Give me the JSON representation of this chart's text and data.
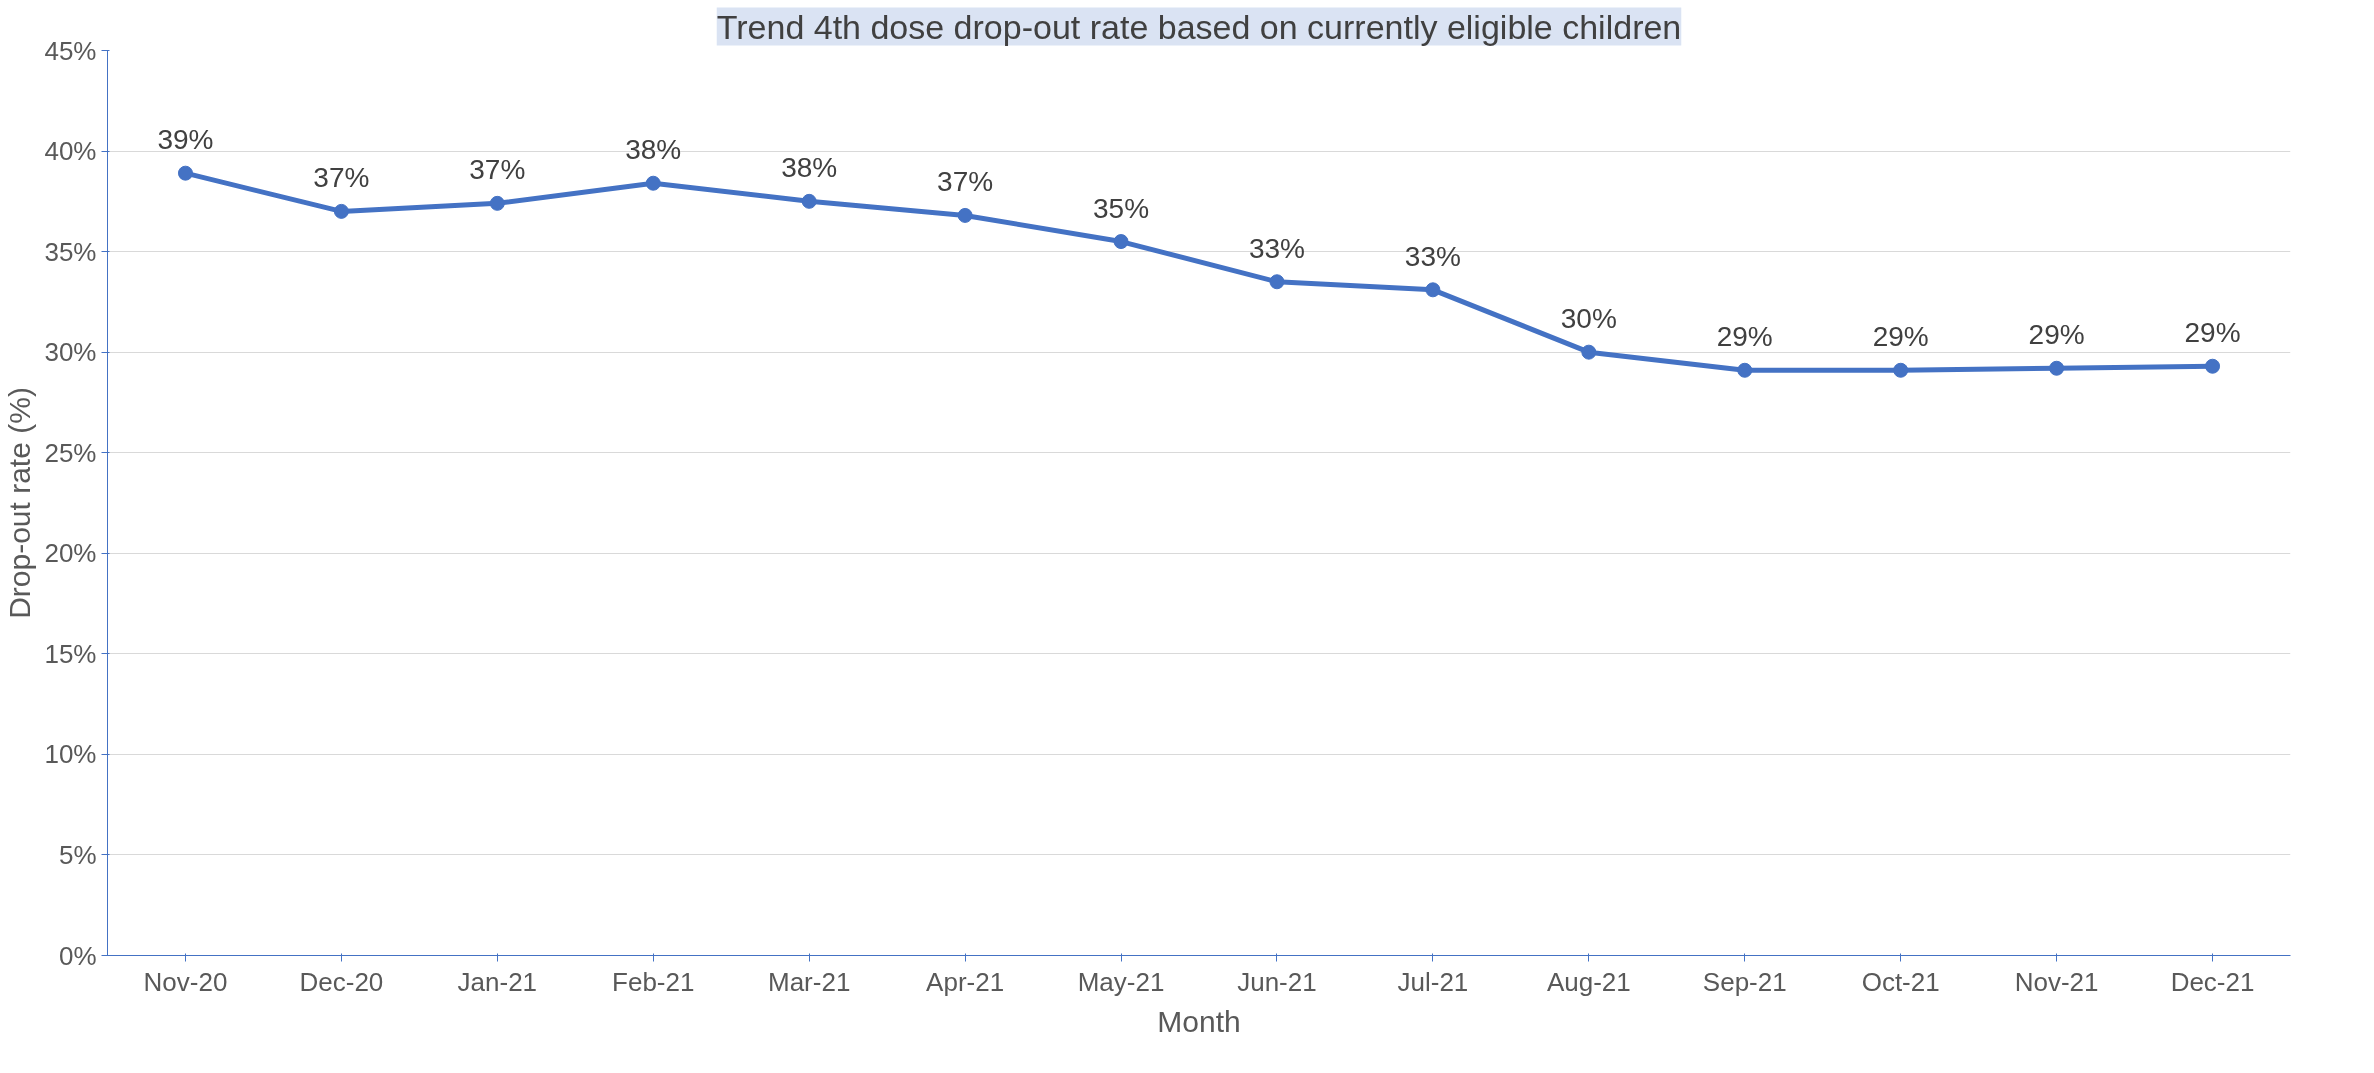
{
  "chart_data": {
    "type": "line",
    "title": "Trend 4th dose drop-out rate based on currently eligible children",
    "xlabel": "Month",
    "ylabel": "Drop-out rate (%)",
    "categories": [
      "Nov-20",
      "Dec-20",
      "Jan-21",
      "Feb-21",
      "Mar-21",
      "Apr-21",
      "May-21",
      "Jun-21",
      "Jul-21",
      "Aug-21",
      "Sep-21",
      "Oct-21",
      "Nov-21",
      "Dec-21"
    ],
    "series": [
      {
        "color": "#4472c4",
        "values": [
          38.9,
          37.0,
          37.4,
          38.4,
          37.5,
          36.8,
          35.5,
          33.5,
          33.1,
          30.0,
          29.1,
          29.1,
          29.2,
          29.3
        ],
        "value_labels": [
          "39%",
          "37%",
          "37%",
          "38%",
          "38%",
          "37%",
          "35%",
          "33%",
          "33%",
          "30%",
          "29%",
          "29%",
          "29%",
          "29%"
        ]
      }
    ],
    "ylim": [
      0,
      45
    ],
    "yticks": [
      {
        "value": 0,
        "label": "0%"
      },
      {
        "value": 5,
        "label": "5%"
      },
      {
        "value": 10,
        "label": "10%"
      },
      {
        "value": 15,
        "label": "15%"
      },
      {
        "value": 20,
        "label": "20%"
      },
      {
        "value": 25,
        "label": "25%"
      },
      {
        "value": 30,
        "label": "30%"
      },
      {
        "value": 35,
        "label": "35%"
      },
      {
        "value": 40,
        "label": "40%"
      },
      {
        "value": 45,
        "label": "45%"
      }
    ],
    "grid": "y",
    "marker": "circle",
    "line_style": "solid"
  }
}
